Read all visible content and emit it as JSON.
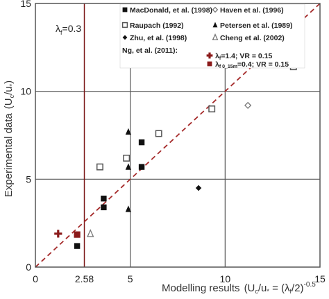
{
  "chart_data": {
    "type": "scatter",
    "xlabel_main": "Modelling results",
    "xlabel_formula": "(U",
    "xlabel_formula_sub": "c",
    "xlabel_formula_mid": "/u",
    "xlabel_formula_sub2": "*",
    "xlabel_formula_eq": " = (λ",
    "xlabel_formula_sub3": "f",
    "xlabel_formula_end": "/2)",
    "xlabel_exponent": "-0.5",
    "xlabel_close": ")",
    "ylabel": "Experimental data",
    "ylabel_formula": "(U",
    "ylabel_formula_sub": "c",
    "ylabel_formula_mid": "/u",
    "ylabel_formula_sub2": "*",
    "ylabel_formula_end": ")",
    "xlim": [
      0,
      15
    ],
    "ylim": [
      0,
      15
    ],
    "x_ticks": [
      {
        "value": 0,
        "label": "0"
      },
      {
        "value": 2.58,
        "label": "2.58"
      },
      {
        "value": 5,
        "label": "5"
      },
      {
        "value": 10,
        "label": "10"
      },
      {
        "value": 15,
        "label": "15"
      }
    ],
    "y_ticks": [
      {
        "value": 0,
        "label": "0"
      },
      {
        "value": 5,
        "label": "5"
      },
      {
        "value": 10,
        "label": "10"
      },
      {
        "value": 15,
        "label": "15"
      }
    ],
    "grid": true,
    "vertical_line": {
      "x": 2.58,
      "color": "#7a1414"
    },
    "vertical_line_label_main": "λ",
    "vertical_line_label_sub": "f",
    "vertical_line_label_value": "=0.3",
    "diagonal_line": {
      "from": [
        0,
        0
      ],
      "to": [
        15,
        15
      ],
      "color": "#a52a2a",
      "style": "dashed"
    },
    "legend_position": "top-right",
    "series": [
      {
        "name": "MacDonald, et al. (1998)",
        "marker": "filled-square",
        "color": "#111111",
        "points": [
          [
            2.2,
            1.2
          ],
          [
            3.6,
            3.9
          ],
          [
            3.6,
            3.4
          ],
          [
            5.6,
            7.1
          ],
          [
            5.6,
            5.7
          ]
        ]
      },
      {
        "name": "Haven et al. (1996)",
        "marker": "open-diamond",
        "color": "#777777",
        "points": [
          [
            11.2,
            9.2
          ]
        ]
      },
      {
        "name": "Raupach (1992)",
        "marker": "open-square",
        "color": "#555555",
        "points": [
          [
            3.4,
            5.7
          ],
          [
            4.8,
            6.2
          ],
          [
            6.5,
            7.6
          ],
          [
            9.3,
            9.0
          ],
          [
            13.6,
            11.4
          ]
        ]
      },
      {
        "name": "Petersen et al. (1989)",
        "marker": "filled-triangle",
        "color": "#111111",
        "points": [
          [
            4.9,
            7.7
          ],
          [
            4.9,
            5.7
          ],
          [
            4.9,
            3.3
          ]
        ]
      },
      {
        "name": "Zhu, et al. (1998)",
        "marker": "filled-diamond",
        "color": "#111111",
        "points": [
          [
            8.6,
            4.5
          ]
        ]
      },
      {
        "name": "Cheng et al. (2002)",
        "marker": "open-triangle",
        "color": "#777777",
        "points": [
          [
            2.9,
            1.9
          ]
        ]
      }
    ],
    "ng_group_label": "Ng, et al. (2011):",
    "ng_series": [
      {
        "name_main": "λ",
        "name_sub": "f",
        "name_rest": "=1.4; VR = 0.15",
        "marker": "plus",
        "color": "#8b1a1a",
        "points": [
          [
            1.2,
            1.9
          ]
        ]
      },
      {
        "name_main": "λ",
        "name_sub": "f 0_15m",
        "name_rest": "=0.4; VR = 0.15",
        "marker": "filled-square",
        "color": "#8b1a1a",
        "points": [
          [
            2.2,
            1.85
          ]
        ]
      }
    ]
  }
}
